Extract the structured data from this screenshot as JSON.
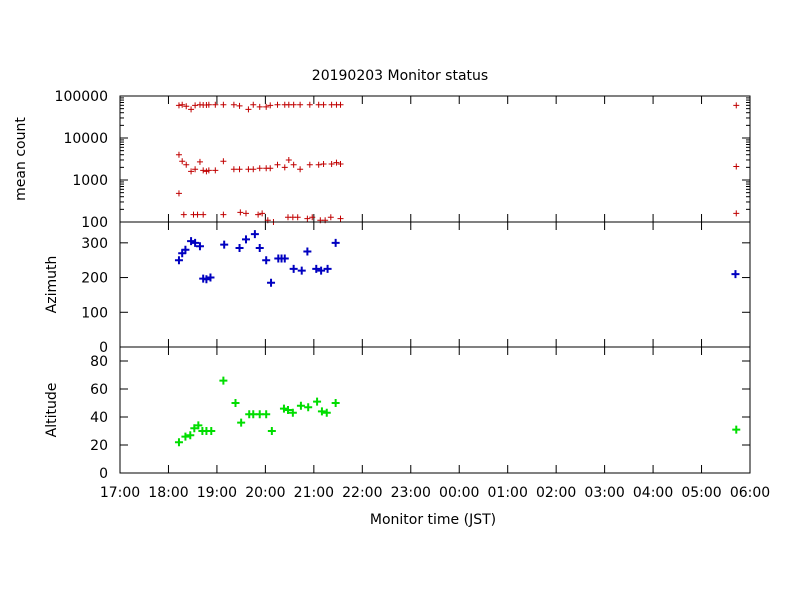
{
  "chart_data": {
    "type": "scatter",
    "title": "20190203 Monitor status",
    "xlabel": "Monitor time (JST)",
    "x_ticks": [
      "17:00",
      "18:00",
      "19:00",
      "20:00",
      "21:00",
      "22:00",
      "23:00",
      "00:00",
      "01:00",
      "02:00",
      "03:00",
      "04:00",
      "05:00",
      "06:00"
    ],
    "x_range": [
      "17:00",
      "06:00"
    ],
    "colors": {
      "mean_count": "#c00000",
      "azimuth": "#0000c0",
      "altitude": "#00dd00"
    },
    "panels": [
      {
        "ylabel": "mean count",
        "scale": "log",
        "ylim": [
          100,
          100000
        ],
        "y_ticks": [
          100,
          1000,
          10000,
          100000
        ],
        "y_tick_labels": [
          "100",
          "1000",
          "10000",
          "100000"
        ],
        "series": [
          {
            "x": [
              "18:13",
              "18:17",
              "18:22",
              "18:28",
              "18:33",
              "18:39",
              "18:43",
              "18:47",
              "18:50",
              "18:58",
              "19:08",
              "19:21",
              "19:28",
              "19:39",
              "19:45",
              "19:53",
              "20:01",
              "20:06",
              "20:15",
              "20:24",
              "20:29",
              "20:35",
              "20:43",
              "20:55",
              "21:06",
              "21:12",
              "21:22",
              "21:28",
              "21:33",
              "05:43"
            ],
            "y": [
              60000,
              62000,
              57000,
              48000,
              60000,
              62000,
              61000,
              61000,
              62000,
              62000,
              62000,
              62000,
              58000,
              48000,
              62000,
              55000,
              55000,
              60000,
              62000,
              62000,
              62000,
              62000,
              62000,
              62000,
              62000,
              62000,
              62000,
              62000,
              62000,
              60000
            ]
          },
          {
            "x": [
              "18:13",
              "18:17",
              "18:22",
              "18:28",
              "18:33",
              "18:39",
              "18:43",
              "18:47",
              "18:50",
              "18:58",
              "19:08",
              "19:21",
              "19:28",
              "19:39",
              "19:45",
              "19:53",
              "20:01",
              "20:06",
              "20:15",
              "20:24",
              "20:29",
              "20:35",
              "20:43",
              "20:55",
              "21:06",
              "21:12",
              "21:22",
              "21:28",
              "21:33",
              "05:43"
            ],
            "y": [
              4000,
              2800,
              2300,
              1600,
              1800,
              2700,
              1700,
              1600,
              1700,
              1700,
              2800,
              1800,
              1800,
              1800,
              1800,
              1900,
              1900,
              1900,
              2300,
              2000,
              3000,
              2300,
              1800,
              2300,
              2300,
              2400,
              2400,
              2600,
              2400,
              2100
            ]
          },
          {
            "x": [
              "18:13",
              "18:19",
              "18:31",
              "18:36",
              "18:43",
              "19:08",
              "19:29",
              "19:36",
              "19:51",
              "19:56",
              "20:03",
              "20:10",
              "20:28",
              "20:34",
              "20:40",
              "20:52",
              "20:58",
              "21:08",
              "21:14",
              "21:21",
              "21:33",
              "05:43"
            ],
            "y": [
              480,
              150,
              150,
              150,
              150,
              150,
              170,
              160,
              150,
              160,
              110,
              100,
              130,
              130,
              130,
              120,
              130,
              110,
              110,
              130,
              120,
              160
            ]
          }
        ]
      },
      {
        "ylabel": "Azimuth",
        "scale": "linear",
        "ylim": [
          0,
          360
        ],
        "y_ticks": [
          0,
          100,
          200,
          300
        ],
        "y_tick_labels": [
          "0",
          "100",
          "200",
          "300"
        ],
        "series": [
          {
            "x": [
              "18:13",
              "18:17",
              "18:21",
              "18:28",
              "18:33",
              "18:39",
              "18:43",
              "18:47",
              "18:52",
              "19:09",
              "19:28",
              "19:36",
              "19:47",
              "19:53",
              "20:01",
              "20:07",
              "20:16",
              "20:20",
              "20:24",
              "20:35",
              "20:45",
              "20:52",
              "21:03",
              "21:09",
              "21:17",
              "21:27",
              "05:42"
            ],
            "y": [
              250,
              270,
              280,
              305,
              300,
              290,
              197,
              195,
              200,
              295,
              285,
              310,
              325,
              285,
              250,
              185,
              255,
              255,
              255,
              225,
              220,
              275,
              225,
              220,
              225,
              300,
              210
            ]
          }
        ]
      },
      {
        "ylabel": "Altitude",
        "scale": "linear",
        "ylim": [
          0,
          90
        ],
        "y_ticks": [
          0,
          20,
          40,
          60,
          80
        ],
        "y_tick_labels": [
          "0",
          "20",
          "40",
          "60",
          "80"
        ],
        "series": [
          {
            "x": [
              "18:13",
              "18:21",
              "18:27",
              "18:32",
              "18:37",
              "18:42",
              "18:47",
              "18:53",
              "19:08",
              "19:23",
              "19:30",
              "19:40",
              "19:45",
              "19:53",
              "20:01",
              "20:08",
              "20:23",
              "20:28",
              "20:34",
              "20:44",
              "20:53",
              "21:04",
              "21:10",
              "21:16",
              "21:27",
              "05:43"
            ],
            "y": [
              22,
              26,
              27,
              32,
              34,
              30,
              30,
              30,
              66,
              50,
              36,
              42,
              42,
              42,
              42,
              30,
              46,
              45,
              43,
              48,
              47,
              51,
              44,
              43,
              50,
              31
            ]
          }
        ]
      }
    ]
  }
}
